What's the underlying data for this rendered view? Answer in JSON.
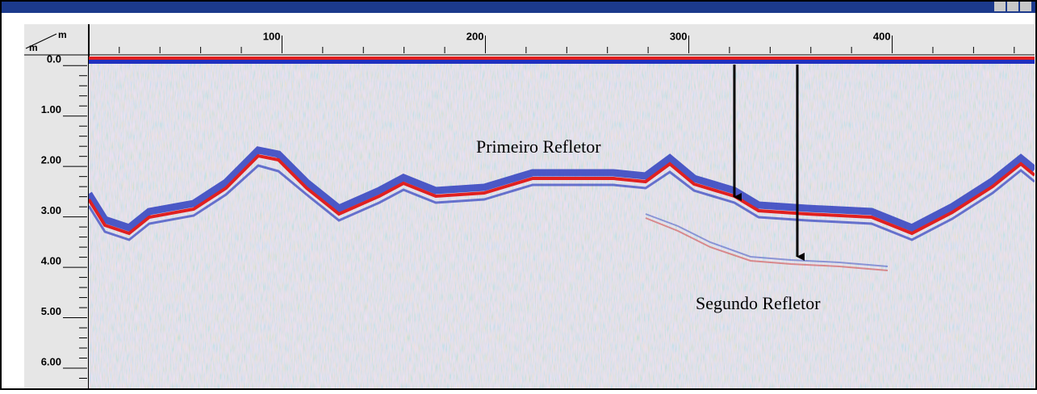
{
  "radargram": {
    "x_axis": {
      "unit": "m",
      "lim": [
        5,
        470
      ],
      "ticks": [
        100,
        200,
        300,
        400
      ],
      "minor_ticks": [
        20,
        40,
        60,
        80,
        120,
        140,
        160,
        180,
        220,
        240,
        260,
        280,
        320,
        340,
        360,
        380,
        420,
        440,
        460
      ]
    },
    "y_axis": {
      "unit": "m",
      "lim": [
        -0.1,
        6.4
      ],
      "ticks": [
        {
          "value": 0,
          "label": "0.0"
        },
        {
          "value": 1,
          "label": "1.00"
        },
        {
          "value": 2,
          "label": "2.00"
        },
        {
          "value": 3,
          "label": "3.00"
        },
        {
          "value": 4,
          "label": "4.00"
        },
        {
          "value": 5,
          "label": "5.00"
        },
        {
          "value": 6,
          "label": "6.00"
        }
      ],
      "minor_ticks": [
        0.2,
        0.4,
        0.6,
        0.8,
        1.2,
        1.4,
        1.6,
        1.8,
        2.2,
        2.4,
        2.6,
        2.8,
        3.2,
        3.4,
        3.6,
        3.8,
        4.2,
        4.4,
        4.6,
        4.8,
        5.2,
        5.4,
        5.6,
        5.8,
        6.2
      ]
    },
    "annotations": [
      {
        "text": "Primeiro Refletor"
      },
      {
        "text": "Segundo Refletor"
      }
    ]
  }
}
